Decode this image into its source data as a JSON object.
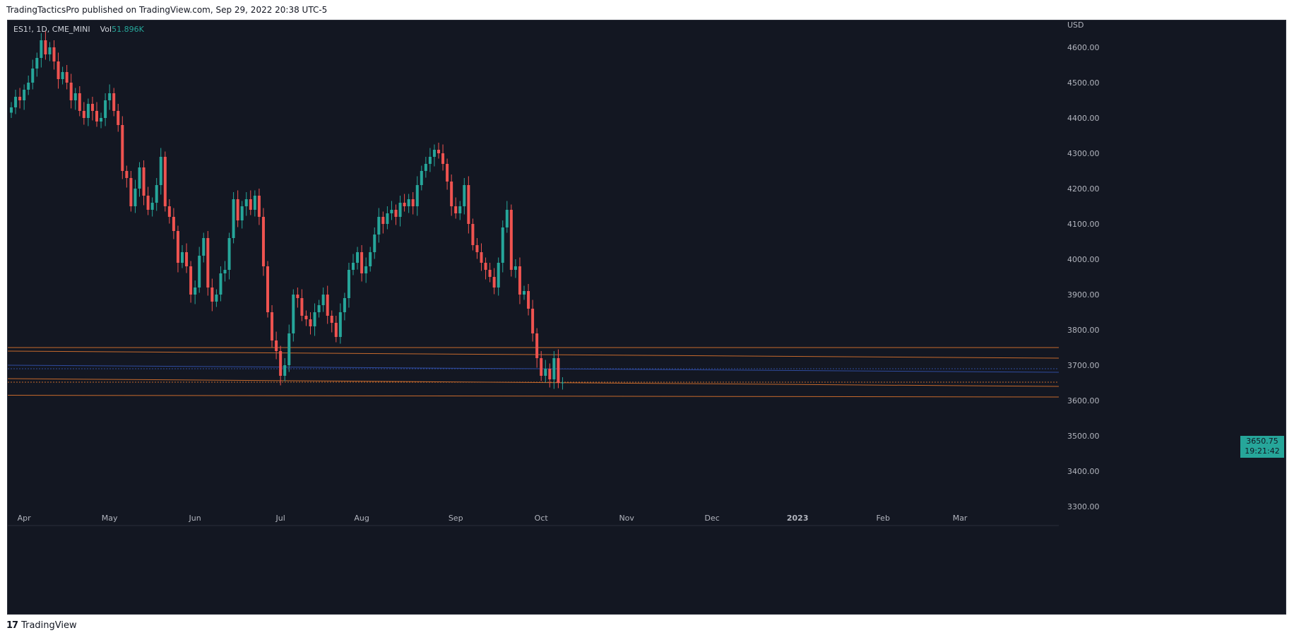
{
  "header": {
    "published_text": "TradingTacticsPro published on TradingView.com, Sep 29, 2022 20:38 UTC-5"
  },
  "footer": {
    "logo_glyph": "17",
    "brand": "TradingView"
  },
  "legend": {
    "symbol_text": "ES1!, 1D, CME_MINI",
    "vol_label": "Vol",
    "vol_value": "51.896K"
  },
  "colors": {
    "background": "#131722",
    "up": "#26a69a",
    "down": "#ef5350",
    "level_line": "#c5692c",
    "blue_line": "#2f4b9e",
    "axis_text": "#b2b5be"
  },
  "chart_data": {
    "type": "candlestick",
    "title": "ES1!, 1D, CME_MINI",
    "currency_label": "USD",
    "y_axis": {
      "ylim": [
        3270,
        4680
      ],
      "ticks": [
        3300,
        3400,
        3500,
        3600,
        3700,
        3800,
        3900,
        4000,
        4100,
        4200,
        4300,
        4400,
        4500,
        4600
      ],
      "tick_labels": [
        "3300.00",
        "3400.00",
        "3500.00",
        "3600.00",
        "3700.00",
        "3800.00",
        "3900.00",
        "4000.00",
        "4100.00",
        "4200.00",
        "4300.00",
        "4400.00",
        "4500.00",
        "4600.00"
      ]
    },
    "x_axis": {
      "labels": [
        "Apr",
        "May",
        "Jun",
        "Jul",
        "Aug",
        "Sep",
        "Oct",
        "Nov",
        "Dec",
        "2023",
        "Feb",
        "Mar"
      ],
      "label_day_index": [
        3,
        23,
        43,
        63,
        82,
        104,
        124,
        144,
        164,
        184,
        204,
        222
      ]
    },
    "last_price": "3650.75",
    "countdown": "19:21:42",
    "candles_close": [
      4430,
      4460,
      4450,
      4480,
      4500,
      4540,
      4570,
      4620,
      4580,
      4600,
      4560,
      4510,
      4530,
      4500,
      4450,
      4470,
      4420,
      4400,
      4440,
      4420,
      4390,
      4400,
      4450,
      4470,
      4420,
      4380,
      4250,
      4230,
      4150,
      4200,
      4260,
      4180,
      4140,
      4160,
      4210,
      4290,
      4150,
      4120,
      4080,
      3990,
      4020,
      3980,
      3900,
      3920,
      4010,
      4060,
      3920,
      3880,
      3900,
      3960,
      3970,
      4060,
      4170,
      4110,
      4150,
      4170,
      4140,
      4180,
      4120,
      3980,
      3850,
      3770,
      3740,
      3670,
      3700,
      3790,
      3900,
      3890,
      3840,
      3830,
      3810,
      3850,
      3870,
      3900,
      3840,
      3820,
      3780,
      3850,
      3890,
      3970,
      3990,
      4020,
      3960,
      3980,
      4020,
      4070,
      4120,
      4100,
      4130,
      4140,
      4120,
      4160,
      4150,
      4170,
      4150,
      4210,
      4250,
      4270,
      4290,
      4310,
      4300,
      4270,
      4220,
      4150,
      4130,
      4150,
      4210,
      4100,
      4040,
      4020,
      3990,
      3970,
      3950,
      3920,
      3990,
      4090,
      4140,
      3970,
      3980,
      3900,
      3910,
      3860,
      3790,
      3720,
      3670,
      3690,
      3660,
      3720,
      3650,
      3651
    ]
  }
}
